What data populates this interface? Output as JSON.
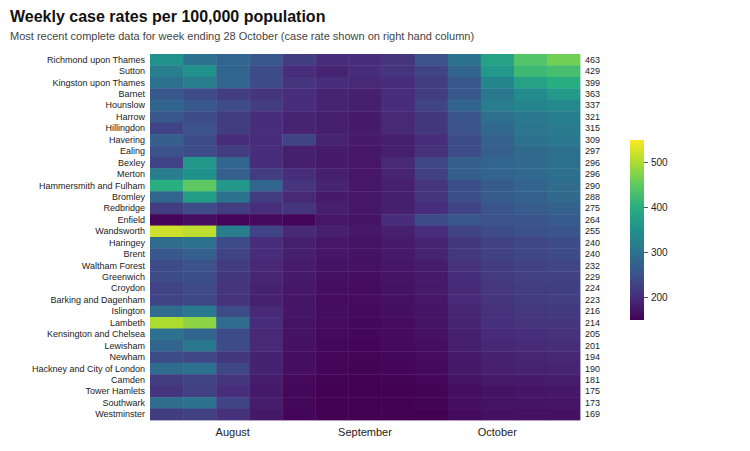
{
  "chart_data": {
    "type": "heatmap",
    "title": "Weekly case rates per 100,000 population",
    "subtitle": "Most recent complete data for week ending 28 October (case rate shown on right hand column)",
    "categories": [
      null,
      null,
      "August",
      null,
      null,
      null,
      "September",
      null,
      null,
      null,
      "October",
      null,
      null
    ],
    "y_categories": [
      "Richmond upon Thames",
      "Sutton",
      "Kingston upon Thames",
      "Barnet",
      "Hounslow",
      "Harrow",
      "Hillingdon",
      "Havering",
      "Ealing",
      "Bexley",
      "Merton",
      "Hammersmith and Fulham",
      "Bromley",
      "Redbridge",
      "Enfield",
      "Wandsworth",
      "Haringey",
      "Brent",
      "Waltham Forest",
      "Greenwich",
      "Croydon",
      "Barking and Dagenham",
      "Islington",
      "Lambeth",
      "Kensington and Chelsea",
      "Lewisham",
      "Newham",
      "Hackney and City of London",
      "Camden",
      "Tower Hamlets",
      "Southwark",
      "Westminster"
    ],
    "values": [
      [
        350,
        300,
        280,
        260,
        220,
        200,
        200,
        210,
        250,
        300,
        380,
        440,
        463
      ],
      [
        320,
        350,
        280,
        240,
        200,
        190,
        200,
        210,
        230,
        280,
        360,
        420,
        429
      ],
      [
        300,
        320,
        280,
        240,
        210,
        200,
        195,
        200,
        220,
        260,
        330,
        380,
        399
      ],
      [
        260,
        240,
        220,
        210,
        200,
        190,
        185,
        200,
        220,
        260,
        310,
        340,
        363
      ],
      [
        280,
        260,
        240,
        220,
        200,
        190,
        185,
        200,
        230,
        280,
        320,
        330,
        337
      ],
      [
        260,
        240,
        220,
        200,
        190,
        185,
        180,
        195,
        215,
        255,
        295,
        310,
        321
      ],
      [
        230,
        250,
        220,
        200,
        190,
        185,
        180,
        195,
        215,
        250,
        285,
        305,
        315
      ],
      [
        270,
        240,
        200,
        200,
        230,
        190,
        180,
        185,
        200,
        240,
        275,
        300,
        309
      ],
      [
        250,
        240,
        220,
        200,
        185,
        180,
        175,
        185,
        205,
        240,
        270,
        288,
        297
      ],
      [
        230,
        360,
        280,
        200,
        185,
        180,
        175,
        195,
        235,
        270,
        280,
        285,
        296
      ],
      [
        320,
        350,
        270,
        220,
        200,
        185,
        175,
        190,
        225,
        270,
        278,
        285,
        296
      ],
      [
        400,
        450,
        360,
        280,
        210,
        190,
        175,
        185,
        210,
        245,
        265,
        278,
        290
      ],
      [
        280,
        370,
        300,
        220,
        195,
        180,
        175,
        185,
        210,
        245,
        265,
        275,
        288
      ],
      [
        220,
        240,
        220,
        200,
        210,
        185,
        175,
        185,
        200,
        230,
        255,
        265,
        275
      ],
      [
        155,
        165,
        155,
        160,
        155,
        175,
        170,
        200,
        240,
        260,
        250,
        255,
        264
      ],
      [
        520,
        510,
        320,
        230,
        195,
        185,
        175,
        185,
        200,
        230,
        240,
        248,
        255
      ],
      [
        290,
        300,
        240,
        200,
        185,
        175,
        170,
        180,
        190,
        215,
        228,
        235,
        240
      ],
      [
        260,
        270,
        230,
        200,
        185,
        175,
        170,
        178,
        190,
        215,
        228,
        235,
        240
      ],
      [
        240,
        250,
        220,
        195,
        180,
        170,
        168,
        175,
        182,
        205,
        220,
        228,
        232
      ],
      [
        240,
        245,
        215,
        192,
        178,
        168,
        165,
        172,
        180,
        202,
        218,
        225,
        229
      ],
      [
        230,
        238,
        210,
        188,
        175,
        165,
        163,
        170,
        177,
        198,
        212,
        220,
        224
      ],
      [
        230,
        236,
        208,
        186,
        173,
        163,
        161,
        168,
        175,
        197,
        210,
        219,
        223
      ],
      [
        290,
        310,
        240,
        195,
        175,
        165,
        160,
        167,
        172,
        192,
        205,
        212,
        216
      ],
      [
        500,
        480,
        290,
        200,
        170,
        162,
        158,
        163,
        170,
        190,
        203,
        210,
        214
      ],
      [
        300,
        280,
        240,
        195,
        170,
        160,
        158,
        162,
        168,
        185,
        197,
        202,
        205
      ],
      [
        280,
        310,
        240,
        195,
        168,
        158,
        155,
        160,
        165,
        183,
        194,
        198,
        201
      ],
      [
        240,
        235,
        215,
        188,
        165,
        157,
        154,
        158,
        162,
        180,
        187,
        191,
        194
      ],
      [
        290,
        300,
        235,
        188,
        165,
        156,
        153,
        156,
        160,
        176,
        184,
        187,
        190
      ],
      [
        220,
        230,
        210,
        182,
        160,
        153,
        150,
        153,
        157,
        170,
        177,
        179,
        181
      ],
      [
        210,
        225,
        200,
        178,
        158,
        150,
        148,
        150,
        153,
        165,
        171,
        174,
        175
      ],
      [
        290,
        300,
        230,
        182,
        158,
        150,
        148,
        150,
        153,
        165,
        170,
        172,
        173
      ],
      [
        220,
        225,
        205,
        176,
        156,
        148,
        146,
        148,
        150,
        162,
        167,
        168,
        169
      ]
    ],
    "row_values": [
      463,
      429,
      399,
      363,
      337,
      321,
      315,
      309,
      297,
      296,
      296,
      290,
      288,
      275,
      264,
      255,
      240,
      240,
      232,
      229,
      224,
      223,
      216,
      214,
      205,
      201,
      194,
      190,
      181,
      175,
      173,
      169
    ],
    "color": "viridis",
    "color_range": [
      150,
      550
    ],
    "color_ticks": [
      200,
      300,
      400,
      500
    ]
  }
}
